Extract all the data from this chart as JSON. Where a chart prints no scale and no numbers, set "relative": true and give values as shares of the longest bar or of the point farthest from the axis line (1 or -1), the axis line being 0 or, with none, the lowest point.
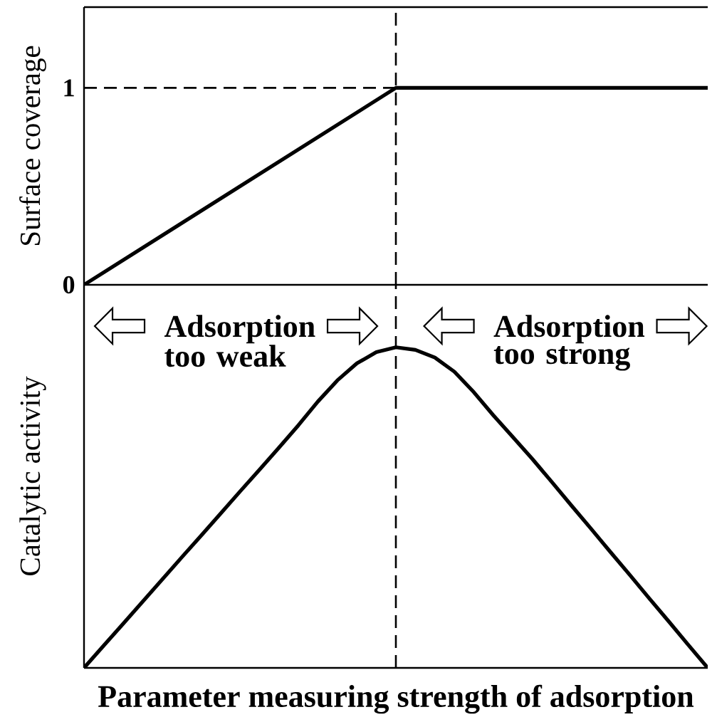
{
  "chart_data": [
    {
      "type": "line",
      "ylabel": "Surface coverage",
      "categories": [
        null,
        null,
        null
      ],
      "values": [
        0,
        1,
        1
      ],
      "color": "#000000",
      "ylim": [
        0,
        1.41
      ],
      "yticks": [
        0,
        1
      ],
      "tick_labels": "y",
      "ref_lines": [
        {
          "axis": "y",
          "value": 1,
          "line_style": "dashed",
          "color": "#000000"
        }
      ]
    },
    {
      "type": "line",
      "relative": true,
      "xlabel": "Parameter measuring strength of adsorption",
      "ylabel": "Catalytic activity",
      "categories": [
        null,
        null,
        null,
        null,
        null,
        null,
        null,
        null,
        null,
        null,
        null,
        null,
        null,
        null,
        null,
        null,
        null,
        null,
        null,
        null,
        null,
        null,
        null,
        null,
        null,
        null,
        null,
        null,
        null,
        null,
        null,
        null,
        null
      ],
      "values": [
        0,
        0.069,
        0.137,
        0.206,
        0.275,
        0.344,
        0.412,
        0.481,
        0.55,
        0.618,
        0.687,
        0.757,
        0.831,
        0.897,
        0.95,
        0.985,
        1,
        0.992,
        0.968,
        0.924,
        0.86,
        0.788,
        0.72,
        0.652,
        0.58,
        0.507,
        0.435,
        0.362,
        0.29,
        0.217,
        0.145,
        0.072,
        0
      ],
      "color": "#000000",
      "tick_labels": false,
      "annotations": [
        "Adsorption too weak",
        "Adsorption too strong"
      ]
    }
  ]
}
